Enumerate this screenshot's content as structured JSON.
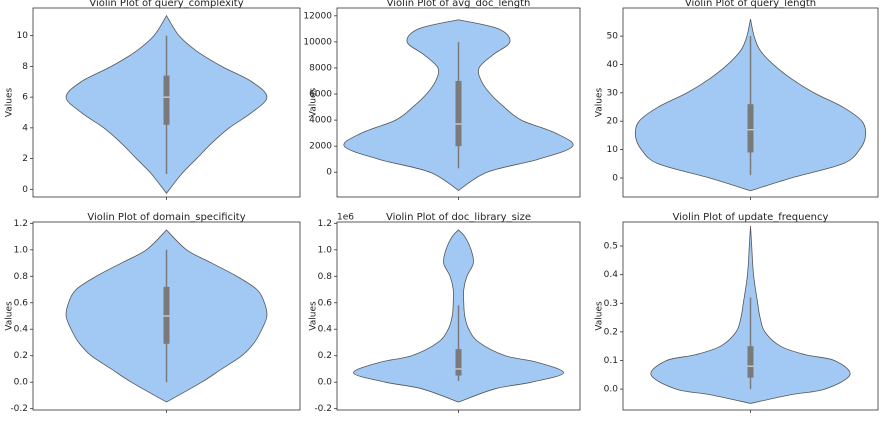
{
  "chart_data": [
    {
      "type": "violin",
      "title": "Violin Plot of query_complexity",
      "ylabel": "Values",
      "color": "#a1c9f4",
      "ylim": [
        -0.5,
        11.8
      ],
      "yticks": [
        0,
        2,
        4,
        6,
        8,
        10
      ],
      "violin": {
        "y": [
          -0.26,
          1,
          2,
          3,
          4,
          5,
          6,
          7,
          8,
          9,
          10,
          11.3
        ],
        "density": [
          0,
          0.12,
          0.24,
          0.36,
          0.5,
          0.68,
          0.8,
          0.68,
          0.44,
          0.24,
          0.1,
          0
        ]
      },
      "box": {
        "whisker_low": 1,
        "q1": 4.2,
        "median": 6,
        "q3": 7.4,
        "whisker_high": 10
      }
    },
    {
      "type": "violin",
      "title": "Violin Plot of avg_doc_length",
      "ylabel": "Values",
      "color": "#a1c9f4",
      "ylim": [
        -1900,
        12600
      ],
      "yticks": [
        0,
        2000,
        4000,
        6000,
        8000,
        10000,
        12000
      ],
      "violin": {
        "y": [
          -1400,
          0,
          1000,
          2000,
          3000,
          4000,
          5000,
          6000,
          7000,
          8000,
          9000,
          10000,
          11000,
          11700
        ],
        "density": [
          0,
          0.25,
          0.7,
          1.0,
          0.85,
          0.55,
          0.4,
          0.28,
          0.2,
          0.18,
          0.3,
          0.45,
          0.35,
          0
        ]
      },
      "box": {
        "whisker_low": 300,
        "q1": 2000,
        "median": 3700,
        "q3": 7000,
        "whisker_high": 10000
      }
    },
    {
      "type": "violin",
      "title": "Violin Plot of query_length",
      "ylabel": "Values",
      "color": "#a1c9f4",
      "ylim": [
        -6.7,
        59.9
      ],
      "yticks": [
        0,
        10,
        20,
        30,
        40,
        50
      ],
      "violin": {
        "y": [
          -4.5,
          0,
          5,
          10,
          15,
          20,
          25,
          30,
          35,
          40,
          45,
          50,
          56
        ],
        "density": [
          0,
          0.34,
          0.77,
          0.91,
          0.96,
          0.93,
          0.77,
          0.53,
          0.34,
          0.19,
          0.08,
          0.03,
          0
        ]
      },
      "box": {
        "whisker_low": 1,
        "q1": 9,
        "median": 17,
        "q3": 26,
        "whisker_high": 50
      }
    },
    {
      "type": "violin",
      "title": "Violin Plot of domain_specificity",
      "ylabel": "Values",
      "color": "#a1c9f4",
      "ylim": [
        -0.21,
        1.21
      ],
      "yticks": [
        -0.2,
        {
          "value": 0,
          "label": "0.0"
        },
        0.2,
        0.4,
        0.6,
        0.8,
        {
          "value": 1,
          "label": "1.0"
        },
        1.2
      ],
      "violin": {
        "y": [
          -0.15,
          0,
          0.1,
          0.2,
          0.3,
          0.4,
          0.5,
          0.6,
          0.7,
          0.8,
          0.9,
          1.0,
          1.15
        ],
        "density": [
          0,
          0.28,
          0.44,
          0.6,
          0.7,
          0.76,
          0.8,
          0.78,
          0.72,
          0.56,
          0.36,
          0.16,
          0
        ]
      },
      "box": {
        "whisker_low": 0,
        "q1": 0.29,
        "median": 0.5,
        "q3": 0.72,
        "whisker_high": 1.0
      }
    },
    {
      "type": "violin",
      "title": "Violin Plot of doc_library_size",
      "ylabel": "Values",
      "offset_label": "1e6",
      "color": "#a1c9f4",
      "ylim": [
        -0.21,
        1.21
      ],
      "yticks": [
        -0.2,
        {
          "value": 0,
          "label": "0.0"
        },
        0.2,
        0.4,
        0.6,
        0.8,
        {
          "value": 1,
          "label": "1.0"
        },
        1.2
      ],
      "violin": {
        "y": [
          -0.15,
          -0.05,
          0,
          0.07,
          0.15,
          0.2,
          0.3,
          0.4,
          0.5,
          0.6,
          0.7,
          0.8,
          0.9,
          1.0,
          1.1,
          1.15
        ],
        "density": [
          0,
          0.32,
          0.64,
          0.92,
          0.69,
          0.41,
          0.18,
          0.09,
          0.055,
          0.046,
          0.046,
          0.074,
          0.13,
          0.11,
          0.055,
          0
        ]
      },
      "box": {
        "whisker_low": 0.01,
        "q1": 0.05,
        "median": 0.1,
        "q3": 0.25,
        "whisker_high": 0.58
      }
    },
    {
      "type": "violin",
      "title": "Violin Plot of update_frequency",
      "ylabel": "Values",
      "color": "#a1c9f4",
      "ylim": [
        -0.073,
        0.584
      ],
      "yticks": [
        {
          "value": 0,
          "label": "0.0"
        },
        0.1,
        0.2,
        0.3,
        0.4,
        0.5
      ],
      "violin": {
        "y": [
          -0.05,
          -0.02,
          0,
          0.05,
          0.1,
          0.12,
          0.15,
          0.2,
          0.25,
          0.3,
          0.4,
          0.5,
          0.57
        ],
        "density": [
          0,
          0.33,
          0.62,
          0.83,
          0.7,
          0.46,
          0.25,
          0.12,
          0.08,
          0.06,
          0.025,
          0.01,
          0
        ]
      },
      "box": {
        "whisker_low": 0,
        "q1": 0.04,
        "median": 0.08,
        "q3": 0.15,
        "whisker_high": 0.32
      }
    }
  ]
}
